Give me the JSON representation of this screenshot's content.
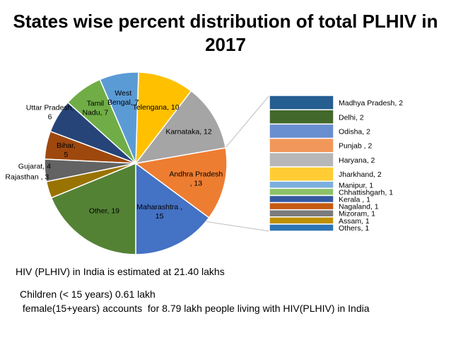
{
  "chart_data": {
    "type": "bar-of-pie",
    "title_line1": "States wise percent distribution of total PLHIV in",
    "title_line2": "2017",
    "pie": [
      {
        "label": "Maharashtra , 15",
        "value": 15,
        "color": "#4472C4",
        "text_color": "#000000"
      },
      {
        "label": "Andhra Pradesh , 13",
        "value": 13,
        "color": "#ED7D31",
        "text_color": "#000000"
      },
      {
        "label": "Karnataka, 12",
        "value": 12,
        "color": "#A5A5A5",
        "text_color": "#000000"
      },
      {
        "label": "Telengana, 10",
        "value": 10,
        "color": "#FFC000",
        "text_color": "#000000"
      },
      {
        "label": "West Bengal, 7",
        "value": 7,
        "color": "#5B9BD5",
        "text_color": "#000000"
      },
      {
        "label": "Tamil Nadu, 7",
        "value": 7,
        "color": "#70AD47",
        "text_color": "#000000"
      },
      {
        "label": "Uttar Pradesh, 6",
        "value": 6,
        "color": "#264478",
        "text_color": "#000000"
      },
      {
        "label": "Bihar, 5",
        "value": 5,
        "color": "#9E480E",
        "text_color": "#000000"
      },
      {
        "label": "Gujarat, 4",
        "value": 4,
        "color": "#636363",
        "text_color": "#000000"
      },
      {
        "label": "Rajasthan , 3",
        "value": 3,
        "color": "#997300",
        "text_color": "#000000"
      },
      {
        "label": "Other, 19",
        "value": 19,
        "color": "#548235",
        "text_color": "#000000"
      }
    ],
    "other_breakdown": [
      {
        "label": "Madhya Pradesh, 2",
        "value": 2,
        "color": "#255E91"
      },
      {
        "label": "Delhi, 2",
        "value": 2,
        "color": "#43682B"
      },
      {
        "label": "Odisha, 2",
        "value": 2,
        "color": "#698ED0"
      },
      {
        "label": "Punjab , 2",
        "value": 2,
        "color": "#F1975A"
      },
      {
        "label": "Haryana, 2",
        "value": 2,
        "color": "#B7B7B7"
      },
      {
        "label": "Jharkhand, 2",
        "value": 2,
        "color": "#FFCD33"
      },
      {
        "label": "Manipur, 1",
        "value": 1,
        "color": "#7CAFDD"
      },
      {
        "label": "Chhattishgarh, 1",
        "value": 1,
        "color": "#8CC168"
      },
      {
        "label": "Kerala , 1",
        "value": 1,
        "color": "#335AA1"
      },
      {
        "label": "Nagaland, 1",
        "value": 1,
        "color": "#C55A11"
      },
      {
        "label": "Mizoram, 1",
        "value": 1,
        "color": "#7B7B7B"
      },
      {
        "label": "Assam, 1",
        "value": 1,
        "color": "#BF9000"
      },
      {
        "label": "Others, 1",
        "value": 1,
        "color": "#2E75B6"
      }
    ],
    "connector_color": "#BFBFBF"
  },
  "notes": {
    "total": "HIV (PLHIV) in India is estimated at 21.40 lakhs",
    "children": "Children (< 15 years) 0.61 lakh",
    "female": " female(15+years) accounts  for 8.79 lakh people living with HIV(PLHIV) in India"
  }
}
